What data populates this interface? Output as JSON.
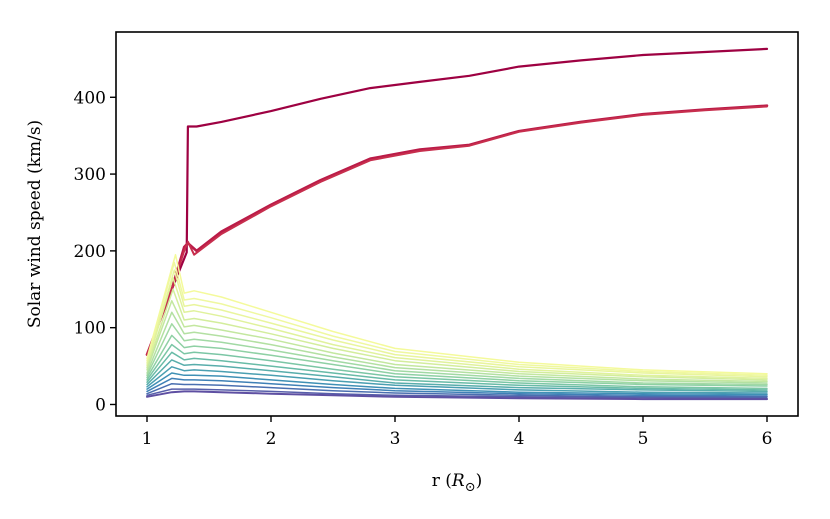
{
  "chart_data": {
    "type": "line",
    "title": "",
    "xlabel": "r (R⊙)",
    "ylabel": "Solar wind speed (km/s)",
    "xlim": [
      0.75,
      6.25
    ],
    "ylim": [
      -15,
      485
    ],
    "xticks": [
      1,
      2,
      3,
      4,
      5,
      6
    ],
    "yticks": [
      0,
      100,
      200,
      300,
      400
    ],
    "xtick_labels": [
      "1",
      "2",
      "3",
      "4",
      "5",
      "6"
    ],
    "ytick_labels": [
      "0",
      "100",
      "200",
      "300",
      "400"
    ],
    "grid": false,
    "legend": "none",
    "colormap": "Spectral (reversed): purple-blue for low speeds, yellow mid, crimson for high",
    "series": [
      {
        "color": "#9e0142",
        "width": 2.2,
        "x": [
          1.0,
          1.2,
          1.3,
          1.32,
          1.33,
          1.4,
          1.6,
          2.0,
          2.4,
          2.8,
          3.2,
          3.6,
          4.0,
          4.5,
          5.0,
          5.5,
          6.0
        ],
        "y": [
          65,
          150,
          190,
          198,
          362,
          362,
          368,
          382,
          398,
          412,
          420,
          428,
          440,
          448,
          455,
          459,
          463
        ]
      },
      {
        "color": "#ba1b48",
        "width": 2.6,
        "x": [
          1.0,
          1.2,
          1.3,
          1.33,
          1.4,
          1.6,
          2.0,
          2.4,
          2.8,
          3.2,
          3.6,
          4.0,
          4.5,
          5.0,
          5.5,
          6.0
        ],
        "y": [
          65,
          150,
          205,
          210,
          200,
          225,
          260,
          292,
          320,
          332,
          338,
          356,
          368,
          378,
          384,
          389
        ]
      },
      {
        "color": "#c72e4d",
        "width": 2.0,
        "x": [
          1.0,
          1.2,
          1.3,
          1.33,
          1.38,
          1.6,
          2.0,
          2.4,
          2.8,
          3.2,
          3.6,
          4.0,
          4.5,
          5.0,
          5.5,
          6.0
        ],
        "y": [
          65,
          150,
          200,
          212,
          195,
          222,
          258,
          290,
          318,
          330,
          337,
          355,
          367,
          377,
          383,
          388
        ]
      },
      {
        "color": "#f4fa9b",
        "width": 1.5,
        "x": [
          1.0,
          1.23,
          1.3,
          1.38,
          1.6,
          2.0,
          2.5,
          3.0,
          4.0,
          5.0,
          6.0
        ],
        "y": [
          60,
          195,
          145,
          148,
          140,
          120,
          95,
          73,
          55,
          45,
          40
        ]
      },
      {
        "color": "#eff8a0",
        "width": 1.5,
        "x": [
          1.0,
          1.22,
          1.3,
          1.38,
          1.6,
          2.0,
          2.5,
          3.0,
          4.0,
          5.0,
          6.0
        ],
        "y": [
          57,
          185,
          136,
          138,
          131,
          113,
          89,
          69,
          52,
          43,
          38
        ]
      },
      {
        "color": "#e9f59d",
        "width": 1.5,
        "x": [
          1.0,
          1.22,
          1.3,
          1.38,
          1.6,
          2.0,
          2.5,
          3.0,
          4.0,
          5.0,
          6.0
        ],
        "y": [
          54,
          175,
          128,
          130,
          123,
          106,
          84,
          65,
          49,
          41,
          36
        ]
      },
      {
        "color": "#e0f29c",
        "width": 1.5,
        "x": [
          1.0,
          1.21,
          1.3,
          1.38,
          1.6,
          2.0,
          2.5,
          3.0,
          4.0,
          5.0,
          6.0
        ],
        "y": [
          51,
          165,
          120,
          122,
          115,
          99,
          78,
          61,
          46,
          38,
          34
        ]
      },
      {
        "color": "#d3ed9c",
        "width": 1.5,
        "x": [
          1.0,
          1.21,
          1.3,
          1.38,
          1.6,
          2.0,
          2.5,
          3.0,
          4.0,
          5.0,
          6.0
        ],
        "y": [
          48,
          150,
          110,
          112,
          106,
          92,
          73,
          57,
          43,
          36,
          32
        ]
      },
      {
        "color": "#c3e79f",
        "width": 1.5,
        "x": [
          1.0,
          1.2,
          1.3,
          1.38,
          1.6,
          2.0,
          2.5,
          3.0,
          4.0,
          5.0,
          6.0
        ],
        "y": [
          45,
          135,
          101,
          103,
          97,
          85,
          67,
          52,
          40,
          33,
          30
        ]
      },
      {
        "color": "#b3e0a2",
        "width": 1.5,
        "x": [
          1.0,
          1.2,
          1.3,
          1.38,
          1.6,
          2.0,
          2.5,
          3.0,
          4.0,
          5.0,
          6.0
        ],
        "y": [
          41,
          120,
          92,
          94,
          89,
          78,
          62,
          48,
          37,
          31,
          28
        ]
      },
      {
        "color": "#a1d9a4",
        "width": 1.5,
        "x": [
          1.0,
          1.2,
          1.3,
          1.38,
          1.6,
          2.0,
          2.5,
          3.0,
          4.0,
          5.0,
          6.0
        ],
        "y": [
          38,
          105,
          83,
          85,
          81,
          71,
          57,
          44,
          34,
          28,
          26
        ]
      },
      {
        "color": "#8ed0a4",
        "width": 1.5,
        "x": [
          1.0,
          1.2,
          1.3,
          1.38,
          1.6,
          2.0,
          2.5,
          3.0,
          4.0,
          5.0,
          6.0
        ],
        "y": [
          35,
          90,
          74,
          76,
          73,
          64,
          52,
          40,
          31,
          26,
          24
        ]
      },
      {
        "color": "#7bc6a5",
        "width": 1.5,
        "x": [
          1.0,
          1.2,
          1.3,
          1.38,
          1.6,
          2.0,
          2.5,
          3.0,
          4.0,
          5.0,
          6.0
        ],
        "y": [
          32,
          78,
          66,
          68,
          65,
          57,
          46,
          36,
          28,
          23,
          21
        ]
      },
      {
        "color": "#68bba7",
        "width": 1.5,
        "x": [
          1.0,
          1.2,
          1.3,
          1.38,
          1.6,
          2.0,
          2.5,
          3.0,
          4.0,
          5.0,
          6.0
        ],
        "y": [
          29,
          68,
          58,
          60,
          57,
          50,
          41,
          32,
          25,
          21,
          19
        ]
      },
      {
        "color": "#58adab",
        "width": 1.5,
        "x": [
          1.0,
          1.2,
          1.3,
          1.38,
          1.6,
          2.0,
          2.5,
          3.0,
          4.0,
          5.0,
          6.0
        ],
        "y": [
          26,
          58,
          51,
          52,
          50,
          44,
          36,
          28,
          22,
          19,
          17
        ]
      },
      {
        "color": "#4a9fb1",
        "width": 1.5,
        "x": [
          1.0,
          1.2,
          1.3,
          1.38,
          1.6,
          2.0,
          2.5,
          3.0,
          4.0,
          5.0,
          6.0
        ],
        "y": [
          23,
          49,
          44,
          45,
          43,
          38,
          31,
          25,
          19,
          16,
          15
        ]
      },
      {
        "color": "#3f90b5",
        "width": 1.5,
        "x": [
          1.0,
          1.2,
          1.3,
          1.38,
          1.6,
          2.0,
          2.5,
          3.0,
          4.0,
          5.0,
          6.0
        ],
        "y": [
          20,
          41,
          38,
          38,
          37,
          32,
          26,
          21,
          16,
          14,
          13
        ]
      },
      {
        "color": "#3f80b6",
        "width": 1.5,
        "x": [
          1.0,
          1.2,
          1.3,
          1.38,
          1.6,
          2.0,
          2.5,
          3.0,
          4.0,
          5.0,
          6.0
        ],
        "y": [
          17,
          34,
          32,
          32,
          31,
          27,
          22,
          18,
          14,
          12,
          11
        ]
      },
      {
        "color": "#4a6fb0",
        "width": 1.5,
        "x": [
          1.0,
          1.2,
          1.3,
          1.38,
          1.6,
          2.0,
          2.5,
          3.0,
          4.0,
          5.0,
          6.0
        ],
        "y": [
          14,
          27,
          26,
          26,
          25,
          22,
          18,
          15,
          12,
          10,
          10
        ]
      },
      {
        "color": "#575faa",
        "width": 1.5,
        "x": [
          1.0,
          1.2,
          1.3,
          1.38,
          1.6,
          2.0,
          2.5,
          3.0,
          4.0,
          5.0,
          6.0
        ],
        "y": [
          12,
          20,
          20,
          20,
          19,
          17,
          14,
          12,
          10,
          9,
          8
        ]
      },
      {
        "color": "#5e4fa2",
        "width": 2.0,
        "x": [
          1.0,
          1.2,
          1.3,
          1.38,
          1.6,
          2.0,
          2.5,
          3.0,
          4.0,
          5.0,
          6.0
        ],
        "y": [
          10,
          16,
          17,
          17,
          16,
          14,
          12,
          10,
          8,
          7,
          7
        ]
      }
    ]
  }
}
